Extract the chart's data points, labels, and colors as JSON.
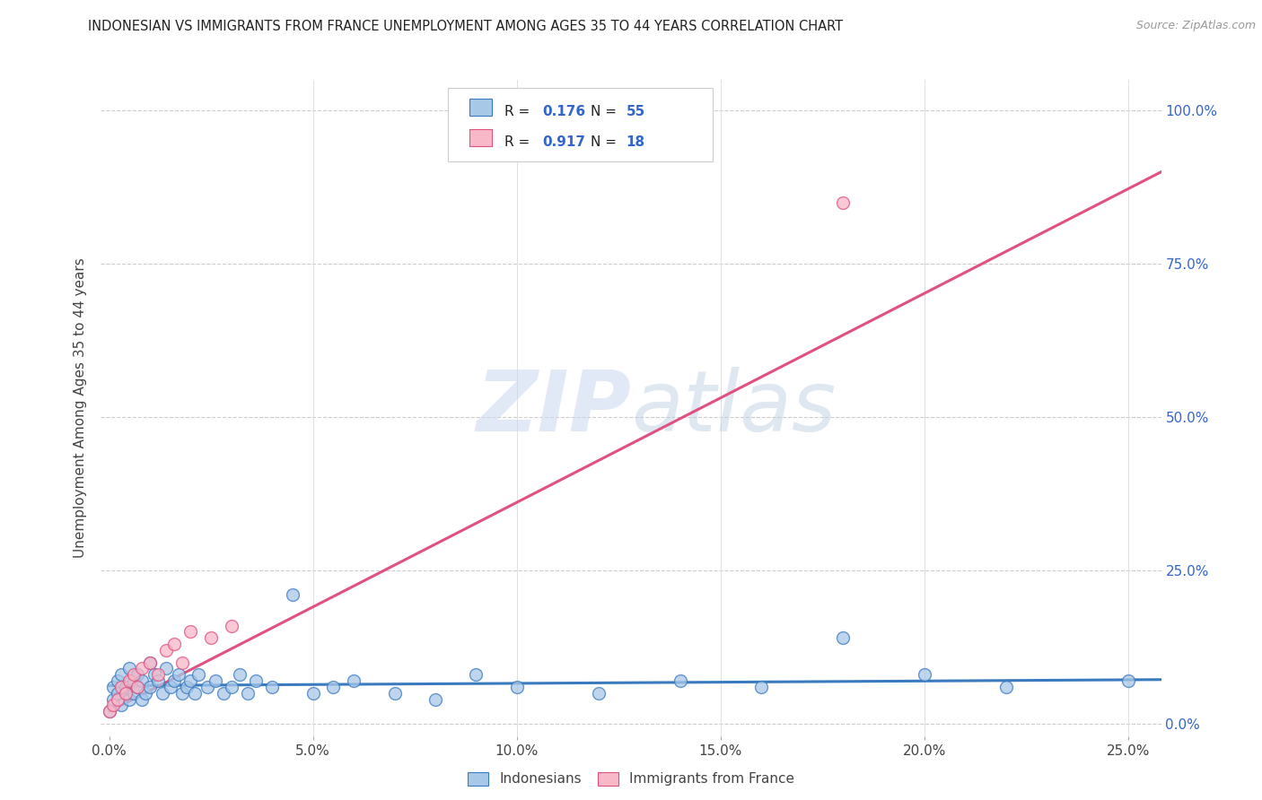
{
  "title": "INDONESIAN VS IMMIGRANTS FROM FRANCE UNEMPLOYMENT AMONG AGES 35 TO 44 YEARS CORRELATION CHART",
  "source": "Source: ZipAtlas.com",
  "legend_label1": "Indonesians",
  "legend_label2": "Immigrants from France",
  "r1": 0.176,
  "n1": 55,
  "r2": 0.917,
  "n2": 18,
  "color_blue": "#a8c8e8",
  "color_pink": "#f9b8c8",
  "line_blue": "#3a7abf",
  "line_pink": "#e05080",
  "watermark_zip": "ZIP",
  "watermark_atlas": "atlas",
  "indonesians_x": [
    0.0,
    0.001,
    0.001,
    0.002,
    0.002,
    0.003,
    0.003,
    0.004,
    0.004,
    0.005,
    0.005,
    0.006,
    0.006,
    0.007,
    0.007,
    0.008,
    0.008,
    0.009,
    0.01,
    0.01,
    0.011,
    0.012,
    0.013,
    0.014,
    0.015,
    0.016,
    0.017,
    0.018,
    0.019,
    0.02,
    0.021,
    0.022,
    0.024,
    0.026,
    0.028,
    0.03,
    0.032,
    0.034,
    0.036,
    0.04,
    0.045,
    0.05,
    0.055,
    0.06,
    0.07,
    0.08,
    0.09,
    0.1,
    0.12,
    0.14,
    0.16,
    0.18,
    0.2,
    0.22,
    0.25
  ],
  "indonesians_y": [
    0.02,
    0.04,
    0.06,
    0.05,
    0.07,
    0.03,
    0.08,
    0.05,
    0.06,
    0.04,
    0.09,
    0.07,
    0.05,
    0.06,
    0.08,
    0.04,
    0.07,
    0.05,
    0.1,
    0.06,
    0.08,
    0.07,
    0.05,
    0.09,
    0.06,
    0.07,
    0.08,
    0.05,
    0.06,
    0.07,
    0.05,
    0.08,
    0.06,
    0.07,
    0.05,
    0.06,
    0.08,
    0.05,
    0.07,
    0.06,
    0.21,
    0.05,
    0.06,
    0.07,
    0.05,
    0.04,
    0.08,
    0.06,
    0.05,
    0.07,
    0.06,
    0.14,
    0.08,
    0.06,
    0.07
  ],
  "france_x": [
    0.0,
    0.001,
    0.002,
    0.003,
    0.004,
    0.005,
    0.006,
    0.007,
    0.008,
    0.01,
    0.012,
    0.014,
    0.016,
    0.018,
    0.02,
    0.025,
    0.03,
    0.18
  ],
  "france_y": [
    0.02,
    0.03,
    0.04,
    0.06,
    0.05,
    0.07,
    0.08,
    0.06,
    0.09,
    0.1,
    0.08,
    0.12,
    0.13,
    0.1,
    0.15,
    0.14,
    0.16,
    0.85
  ],
  "ylim": [
    -0.02,
    1.05
  ],
  "xlim": [
    -0.002,
    0.258
  ],
  "yticks": [
    0.0,
    0.25,
    0.5,
    0.75,
    1.0
  ],
  "xticks": [
    0.0,
    0.05,
    0.1,
    0.15,
    0.2,
    0.25
  ],
  "blue_trend_x0": 0.0,
  "blue_trend_x1": 0.258,
  "blue_trend_y0": 0.062,
  "blue_trend_y1": 0.072,
  "pink_trend_x0": 0.0,
  "pink_trend_x1": 0.258,
  "pink_trend_y0": 0.02,
  "pink_trend_y1": 0.9
}
